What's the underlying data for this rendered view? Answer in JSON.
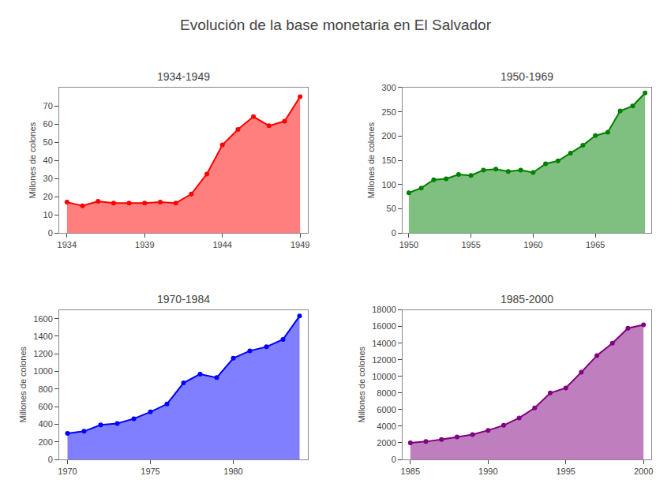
{
  "title": "Evolución de la base monetaria en El Salvador",
  "chart_data": [
    {
      "type": "area",
      "title": "1934-1949",
      "ylabel": "Millones de colones",
      "x": [
        1934,
        1935,
        1936,
        1937,
        1938,
        1939,
        1940,
        1941,
        1942,
        1943,
        1944,
        1945,
        1946,
        1947,
        1948,
        1949
      ],
      "values": [
        17,
        15,
        17.5,
        16.5,
        16.5,
        16.5,
        17,
        16.5,
        21.5,
        32.5,
        48.5,
        57,
        64,
        59,
        61.5,
        75
      ],
      "color": "red",
      "marker": "circle",
      "grid": false,
      "xlim": [
        1933.5,
        1949.5
      ],
      "xticks": [
        1934,
        1939,
        1944,
        1949
      ],
      "ylim": [
        0,
        80
      ],
      "yticks": [
        0,
        10,
        20,
        30,
        40,
        50,
        60,
        70
      ]
    },
    {
      "type": "area",
      "title": "1950-1969",
      "ylabel": "Millones de colones",
      "x": [
        1950,
        1951,
        1952,
        1953,
        1954,
        1955,
        1956,
        1957,
        1958,
        1959,
        1960,
        1961,
        1962,
        1963,
        1964,
        1965,
        1966,
        1967,
        1968,
        1969
      ],
      "values": [
        83,
        93,
        110,
        112,
        121,
        119,
        130,
        132,
        127,
        130,
        125,
        143,
        149,
        165,
        181,
        201,
        208,
        252,
        262,
        289
      ],
      "color": "green",
      "marker": "circle",
      "grid": false,
      "xlim": [
        1949.5,
        1969.5
      ],
      "xticks": [
        1950,
        1955,
        1960,
        1965
      ],
      "ylim": [
        0,
        300
      ],
      "yticks": [
        0,
        50,
        100,
        150,
        200,
        250,
        300
      ]
    },
    {
      "type": "area",
      "title": "1970-1984",
      "ylabel": "Millones de colones",
      "x": [
        1970,
        1971,
        1972,
        1973,
        1974,
        1975,
        1976,
        1977,
        1978,
        1979,
        1980,
        1981,
        1982,
        1983,
        1984
      ],
      "values": [
        297,
        320,
        393,
        408,
        463,
        540,
        630,
        870,
        970,
        930,
        1150,
        1235,
        1280,
        1365,
        1630
      ],
      "color": "blue",
      "marker": "circle",
      "grid": false,
      "xlim": [
        1969.5,
        1984.5
      ],
      "xticks": [
        1970,
        1975,
        1980
      ],
      "ylim": [
        0,
        1700
      ],
      "yticks": [
        0,
        200,
        400,
        600,
        800,
        1000,
        1200,
        1400,
        1600
      ]
    },
    {
      "type": "area",
      "title": "1985-2000",
      "ylabel": "Millones de colones",
      "x": [
        1985,
        1986,
        1987,
        1988,
        1989,
        1990,
        1991,
        1992,
        1993,
        1994,
        1995,
        1996,
        1997,
        1998,
        1999,
        2000
      ],
      "values": [
        2000,
        2150,
        2400,
        2700,
        3000,
        3500,
        4100,
        5000,
        6200,
        8000,
        8600,
        10500,
        12500,
        14000,
        15800,
        16200
      ],
      "color": "purple",
      "marker": "circle",
      "grid": false,
      "xlim": [
        1984.5,
        2000.5
      ],
      "xticks": [
        1985,
        1990,
        1995,
        2000
      ],
      "ylim": [
        0,
        18000
      ],
      "yticks": [
        0,
        2000,
        4000,
        6000,
        8000,
        10000,
        12000,
        14000,
        16000,
        18000
      ]
    }
  ]
}
